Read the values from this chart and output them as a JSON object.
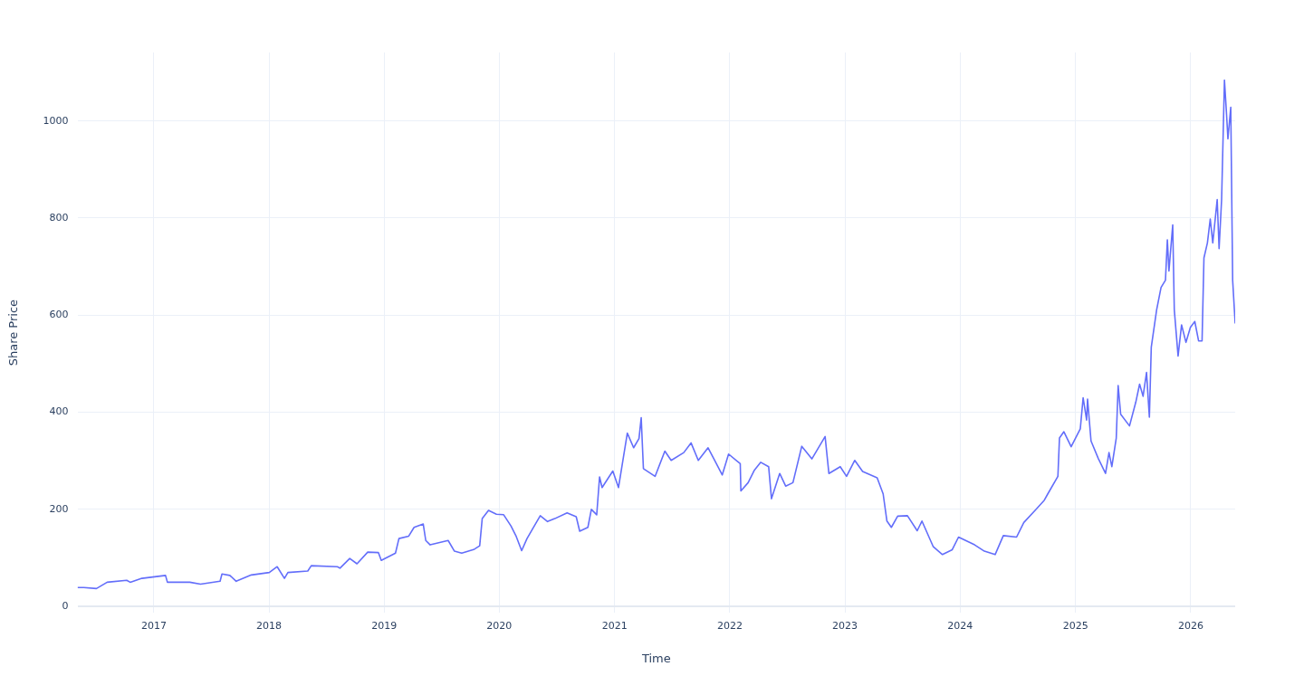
{
  "chart_data": {
    "type": "line",
    "xlabel": "Time",
    "ylabel": "Share Price",
    "grid": true,
    "legend": false,
    "marker": "none",
    "line_style": "solid",
    "xlim": [
      "2016-05-04",
      "2026-05-22"
    ],
    "xticks": [
      "2017",
      "2018",
      "2019",
      "2020",
      "2021",
      "2022",
      "2023",
      "2024",
      "2025",
      "2026"
    ],
    "ylim": [
      -13,
      1141
    ],
    "yticks": [
      0,
      200,
      400,
      600,
      800,
      1000
    ],
    "series": [
      {
        "color": "#636efa",
        "x": [
          "2016-05-04",
          "2016-05-24",
          "2016-07-03",
          "2016-08-06",
          "2016-10-07",
          "2016-10-18",
          "2016-11-24",
          "2017-02-07",
          "2017-02-13",
          "2017-04-25",
          "2017-05-29",
          "2017-07-30",
          "2017-08-05",
          "2017-08-30",
          "2017-09-19",
          "2017-11-06",
          "2018-01-02",
          "2018-01-27",
          "2018-02-19",
          "2018-03-02",
          "2018-05-04",
          "2018-05-15",
          "2018-08-06",
          "2018-08-14",
          "2018-09-14",
          "2018-10-07",
          "2018-11-10",
          "2018-12-14",
          "2018-12-23",
          "2019-02-06",
          "2019-02-17",
          "2019-03-20",
          "2019-04-06",
          "2019-05-05",
          "2019-05-13",
          "2019-05-27",
          "2019-07-23",
          "2019-08-12",
          "2019-09-04",
          "2019-10-14",
          "2019-10-31",
          "2019-11-08",
          "2019-11-28",
          "2019-12-23",
          "2020-01-15",
          "2020-02-07",
          "2020-02-24",
          "2020-03-12",
          "2020-03-29",
          "2020-04-15",
          "2020-05-10",
          "2020-06-02",
          "2020-06-25",
          "2020-08-03",
          "2020-09-01",
          "2020-09-12",
          "2020-10-08",
          "2020-10-19",
          "2020-11-05",
          "2020-11-14",
          "2020-11-22",
          "2020-12-26",
          "2021-01-13",
          "2021-02-10",
          "2021-03-02",
          "2021-03-19",
          "2021-03-26",
          "2021-04-02",
          "2021-05-09",
          "2021-06-09",
          "2021-06-29",
          "2021-08-08",
          "2021-08-31",
          "2021-09-23",
          "2021-10-24",
          "2021-12-08",
          "2021-12-28",
          "2022-02-03",
          "2022-02-05",
          "2022-02-28",
          "2022-03-20",
          "2022-04-09",
          "2022-05-04",
          "2022-05-13",
          "2022-06-08",
          "2022-06-27",
          "2022-07-20",
          "2022-08-17",
          "2022-09-18",
          "2022-10-30",
          "2022-11-11",
          "2022-12-17",
          "2023-01-06",
          "2023-02-01",
          "2023-02-26",
          "2023-04-13",
          "2023-05-02",
          "2023-05-14",
          "2023-05-28",
          "2023-06-17",
          "2023-07-18",
          "2023-08-18",
          "2023-09-02",
          "2023-10-08",
          "2023-11-06",
          "2023-12-07",
          "2023-12-27",
          "2024-02-16",
          "2024-03-18",
          "2024-04-21",
          "2024-05-17",
          "2024-06-28",
          "2024-07-21",
          "2024-08-27",
          "2024-09-24",
          "2024-10-05",
          "2024-11-06",
          "2024-11-11",
          "2024-11-25",
          "2024-12-18",
          "2025-01-16",
          "2025-01-25",
          "2025-02-05",
          "2025-02-08",
          "2025-02-19",
          "2025-03-14",
          "2025-04-06",
          "2025-04-17",
          "2025-04-26",
          "2025-05-10",
          "2025-05-16",
          "2025-05-24",
          "2025-06-21",
          "2025-07-11",
          "2025-07-23",
          "2025-08-03",
          "2025-08-14",
          "2025-08-23",
          "2025-08-29",
          "2025-09-15",
          "2025-09-29",
          "2025-10-13",
          "2025-10-19",
          "2025-10-24",
          "2025-11-05",
          "2025-11-10",
          "2025-11-22",
          "2025-12-03",
          "2025-12-17",
          "2025-12-31",
          "2026-01-14",
          "2026-01-26",
          "2026-02-06",
          "2026-02-12",
          "2026-02-23",
          "2026-03-04",
          "2026-03-12",
          "2026-03-26",
          "2026-04-01",
          "2026-04-09",
          "2026-04-18",
          "2026-04-24",
          "2026-04-29",
          "2026-05-08",
          "2026-05-14",
          "2026-05-22"
        ],
        "values": [
          39,
          39,
          37,
          50,
          54,
          50,
          58,
          64,
          50,
          50,
          46,
          52,
          67,
          64,
          52,
          65,
          70,
          82,
          58,
          70,
          73,
          84,
          82,
          79,
          99,
          88,
          112,
          111,
          95,
          110,
          140,
          145,
          163,
          170,
          136,
          127,
          136,
          114,
          110,
          118,
          125,
          181,
          198,
          190,
          189,
          166,
          144,
          115,
          140,
          159,
          187,
          175,
          181,
          193,
          185,
          155,
          163,
          200,
          189,
          267,
          245,
          279,
          245,
          357,
          327,
          346,
          389,
          284,
          268,
          320,
          301,
          317,
          337,
          301,
          327,
          271,
          314,
          294,
          238,
          255,
          281,
          297,
          288,
          222,
          274,
          248,
          255,
          330,
          304,
          350,
          274,
          288,
          268,
          301,
          278,
          265,
          232,
          176,
          163,
          186,
          187,
          156,
          176,
          123,
          107,
          117,
          143,
          127,
          114,
          107,
          146,
          143,
          173,
          199,
          219,
          232,
          268,
          347,
          360,
          329,
          366,
          430,
          384,
          427,
          341,
          305,
          274,
          317,
          288,
          347,
          455,
          396,
          372,
          421,
          458,
          433,
          482,
          390,
          534,
          611,
          657,
          672,
          755,
          691,
          786,
          611,
          516,
          580,
          544,
          575,
          587,
          547,
          547,
          718,
          749,
          798,
          749,
          838,
          737,
          838,
          1084,
          1021,
          963,
          1028,
          672,
          583
        ]
      }
    ]
  }
}
